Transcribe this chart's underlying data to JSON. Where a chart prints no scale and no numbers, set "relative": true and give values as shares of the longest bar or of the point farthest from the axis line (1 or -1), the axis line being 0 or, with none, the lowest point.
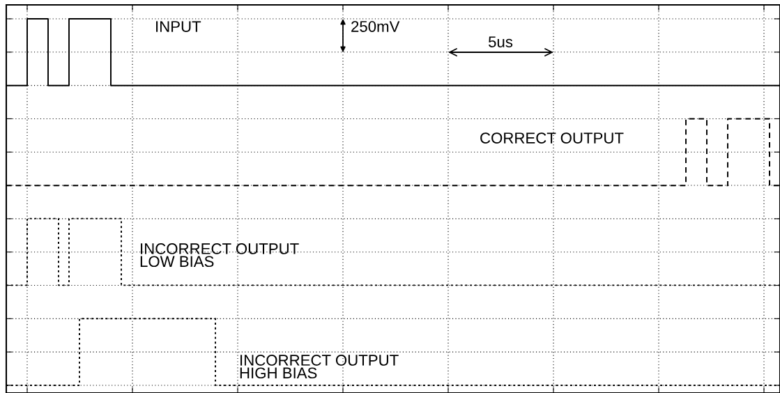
{
  "chart_data": {
    "type": "step",
    "relative": true,
    "grid": true,
    "tick_labels": false,
    "legend": false,
    "categories": [
      null,
      null,
      null,
      null,
      null,
      null,
      null,
      null,
      null,
      null,
      null,
      null,
      null,
      null,
      null,
      null,
      null,
      null,
      null,
      null,
      null,
      null,
      null,
      null,
      null,
      null,
      null,
      null,
      null,
      null,
      null,
      null,
      null,
      null,
      null,
      null,
      null,
      null,
      null,
      null,
      null,
      null,
      null,
      null,
      null,
      null,
      null,
      null,
      null,
      null,
      null,
      null,
      null,
      null,
      null,
      null,
      null,
      null,
      null,
      null,
      null,
      null,
      null,
      null,
      null,
      null,
      null,
      null,
      null,
      null,
      null,
      null,
      null,
      null,
      null
    ],
    "annotations": [
      "250mV",
      "5us"
    ],
    "series": [
      {
        "name": "INPUT",
        "color": "#000000",
        "line_style": "solid",
        "values": [
          0.818,
          0.818,
          1,
          1,
          0.818,
          0.818,
          1,
          1,
          1,
          1,
          0.818,
          0.818,
          0.818,
          0.818,
          0.818,
          0.818,
          0.818,
          0.818,
          0.818,
          0.818,
          0.818,
          0.818,
          0.818,
          0.818,
          0.818,
          0.818,
          0.818,
          0.818,
          0.818,
          0.818,
          0.818,
          0.818,
          0.818,
          0.818,
          0.818,
          0.818,
          0.818,
          0.818,
          0.818,
          0.818,
          0.818,
          0.818,
          0.818,
          0.818,
          0.818,
          0.818,
          0.818,
          0.818,
          0.818,
          0.818,
          0.818,
          0.818,
          0.818,
          0.818,
          0.818,
          0.818,
          0.818,
          0.818,
          0.818,
          0.818,
          0.818,
          0.818,
          0.818,
          0.818,
          0.818,
          0.818,
          0.818,
          0.818,
          0.818,
          0.818,
          0.818,
          0.818,
          0.818,
          0.818,
          0.818
        ]
      },
      {
        "name": "CORRECT OUTPUT",
        "color": "#000000",
        "line_style": "dashed",
        "values": [
          0.545,
          0.545,
          0.545,
          0.545,
          0.545,
          0.545,
          0.545,
          0.545,
          0.545,
          0.545,
          0.545,
          0.545,
          0.545,
          0.545,
          0.545,
          0.545,
          0.545,
          0.545,
          0.545,
          0.545,
          0.545,
          0.545,
          0.545,
          0.545,
          0.545,
          0.545,
          0.545,
          0.545,
          0.545,
          0.545,
          0.545,
          0.545,
          0.545,
          0.545,
          0.545,
          0.545,
          0.545,
          0.545,
          0.545,
          0.545,
          0.545,
          0.545,
          0.545,
          0.545,
          0.545,
          0.545,
          0.545,
          0.545,
          0.545,
          0.545,
          0.545,
          0.545,
          0.545,
          0.545,
          0.545,
          0.545,
          0.545,
          0.545,
          0.545,
          0.545,
          0.545,
          0.545,
          0.545,
          0.545,
          0.545,
          0.727,
          0.727,
          0.545,
          0.545,
          0.727,
          0.727,
          0.727,
          0.727,
          0.545,
          0.545
        ]
      },
      {
        "name": "INCORRECT OUTPUT\nLOW BIAS",
        "color": "#000000",
        "line_style": "dotted",
        "values": [
          0.273,
          0.273,
          0.455,
          0.455,
          0.455,
          0.273,
          0.455,
          0.455,
          0.455,
          0.455,
          0.455,
          0.273,
          0.273,
          0.273,
          0.273,
          0.273,
          0.273,
          0.273,
          0.273,
          0.273,
          0.273,
          0.273,
          0.273,
          0.273,
          0.273,
          0.273,
          0.273,
          0.273,
          0.273,
          0.273,
          0.273,
          0.273,
          0.273,
          0.273,
          0.273,
          0.273,
          0.273,
          0.273,
          0.273,
          0.273,
          0.273,
          0.273,
          0.273,
          0.273,
          0.273,
          0.273,
          0.273,
          0.273,
          0.273,
          0.273,
          0.273,
          0.273,
          0.273,
          0.273,
          0.273,
          0.273,
          0.273,
          0.273,
          0.273,
          0.273,
          0.273,
          0.273,
          0.273,
          0.273,
          0.273,
          0.273,
          0.273,
          0.273,
          0.273,
          0.273,
          0.273,
          0.273,
          0.273,
          0.273,
          0.273
        ]
      },
      {
        "name": "INCORRECT OUTPUT\nHIGH BIAS",
        "color": "#000000",
        "line_style": "dotted",
        "values": [
          0,
          0,
          0,
          0,
          0,
          0,
          0,
          0.182,
          0.182,
          0.182,
          0.182,
          0.182,
          0.182,
          0.182,
          0.182,
          0.182,
          0.182,
          0.182,
          0.182,
          0.182,
          0,
          0,
          0,
          0,
          0,
          0,
          0,
          0,
          0,
          0,
          0,
          0,
          0,
          0,
          0,
          0,
          0,
          0,
          0,
          0,
          0,
          0,
          0,
          0,
          0,
          0,
          0,
          0,
          0,
          0,
          0,
          0,
          0,
          0,
          0,
          0,
          0,
          0,
          0,
          0,
          0,
          0,
          0,
          0,
          0,
          0,
          0,
          0,
          0,
          0,
          0,
          0,
          0,
          0,
          0
        ]
      }
    ]
  }
}
